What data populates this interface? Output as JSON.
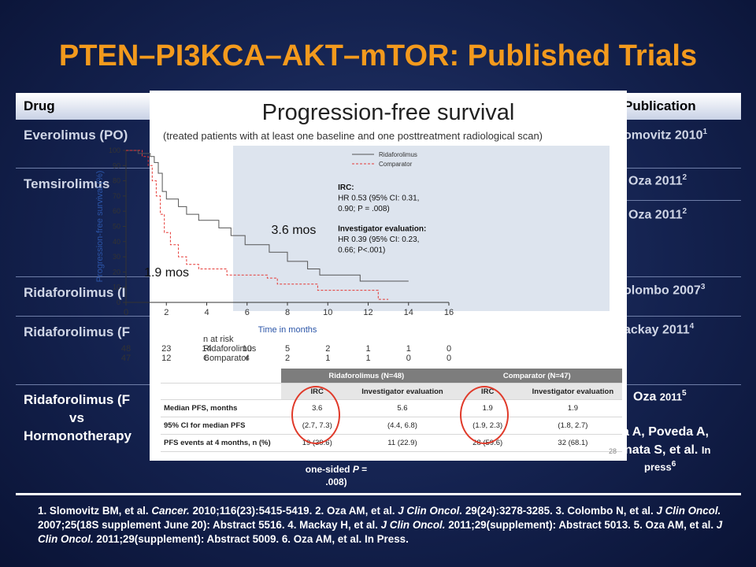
{
  "title": "PTEN–PI3KCA–AKT–mTOR: Published Trials",
  "table": {
    "header": {
      "drug": "Drug",
      "publication": "Publication"
    },
    "rows": [
      {
        "drug": "Everolimus (PO)",
        "pub": "omovitz 2010",
        "sup": "1"
      },
      {
        "drug": "Temsirolimus",
        "pub": "Oza 2011",
        "sup": "2"
      },
      {
        "drug": "",
        "pub": "Oza 2011",
        "sup": "2"
      },
      {
        "drug": "Ridaforolimus (I",
        "pub": "olombo 2007",
        "sup": "3"
      },
      {
        "drug": "Ridaforolimus (F",
        "pub": "ackay 2011",
        "sup": "4"
      }
    ],
    "last_row": {
      "line1": "Ridaforolimus (F",
      "line2": "vs",
      "line3": "Hormonotherapy",
      "pub": "Oza",
      "pub_year": "2011",
      "pub_sup": "5",
      "pub2_line1": "a A, Poveda A,",
      "pub2_line2a": "nata S, et al.",
      "pub2_line2b": "In",
      "pub2_line3": "press",
      "pub2_sup": "6"
    },
    "stat_note": {
      "line1": "one-sided",
      "p_label": "P",
      "line2": "=",
      "line3": ".008)"
    }
  },
  "footnote": {
    "p1": "1. Slomovitz BM, et al. ",
    "j1": "Cancer.",
    "p2": " 2010;116(23):5415-5419. 2. Oza AM, et al.  ",
    "j2": "J Clin Oncol.",
    "p3": " 29(24):3278-3285. 3. Colombo N, et al.  ",
    "j3": "J Clin Oncol.",
    "p4": " 2007;25(18S supplement June 20): Abstract 5516. 4. Mackay H, et al. ",
    "j4": "J Clin Oncol.",
    "p5": " 2011;29(supplement): Abstract 5013. 5. Oza AM, et al. ",
    "j5": "J Clin Oncol.",
    "p6": " 2011;29(supplement): Abstract 5009. 6. Oza AM, et al. In Press."
  },
  "panel": {
    "title": "Progression-free survival",
    "subtitle": "(treated patients with at least one baseline and one posttreatment radiological scan)",
    "irc_title": "IRC:",
    "irc_line1": "HR 0.53 (95% CI: 0.31,",
    "irc_line2": "0.90; P = .008)",
    "inv_title": "Investigator evaluation:",
    "inv_line1": "HR 0.39 (95% CI: 0.23,",
    "inv_line2": "0.66; P<.001)",
    "median_ridaforolimus": "3.6 mos",
    "median_comparator": "1.9 mos",
    "at_risk_label": "n at risk",
    "at_risk_rows": [
      {
        "name": "Ridaforolimus",
        "values": [
          "48",
          "23",
          "14",
          "10",
          "5",
          "2",
          "1",
          "1",
          "0"
        ]
      },
      {
        "name": "Comparator",
        "values": [
          "47",
          "12",
          "6",
          "4",
          "2",
          "1",
          "1",
          "0",
          "0"
        ]
      }
    ],
    "page_number": "28"
  },
  "chart_data": {
    "type": "line",
    "xlabel": "Time in months",
    "ylabel": "Progression-free survival (%)",
    "xlim": [
      0,
      16
    ],
    "ylim": [
      0,
      100
    ],
    "xticks": [
      0,
      2,
      4,
      6,
      8,
      10,
      12,
      14,
      16
    ],
    "yticks": [
      0,
      10,
      20,
      30,
      40,
      50,
      60,
      70,
      80,
      90,
      100
    ],
    "legend_position": "top-right",
    "series": [
      {
        "name": "Ridaforolimus",
        "color": "#555555",
        "points": [
          [
            0,
            100
          ],
          [
            0.6,
            100
          ],
          [
            0.6,
            98
          ],
          [
            1.2,
            98
          ],
          [
            1.2,
            96
          ],
          [
            1.4,
            96
          ],
          [
            1.4,
            92
          ],
          [
            1.6,
            92
          ],
          [
            1.6,
            85
          ],
          [
            1.8,
            85
          ],
          [
            1.8,
            73
          ],
          [
            2.0,
            73
          ],
          [
            2.0,
            68
          ],
          [
            2.6,
            68
          ],
          [
            2.6,
            63
          ],
          [
            3.0,
            63
          ],
          [
            3.0,
            58
          ],
          [
            3.6,
            58
          ],
          [
            3.6,
            54
          ],
          [
            4.6,
            54
          ],
          [
            4.6,
            49
          ],
          [
            5.2,
            49
          ],
          [
            5.2,
            44
          ],
          [
            5.9,
            44
          ],
          [
            5.9,
            38
          ],
          [
            7.1,
            38
          ],
          [
            7.1,
            33
          ],
          [
            8.0,
            33
          ],
          [
            8.0,
            27
          ],
          [
            9.0,
            27
          ],
          [
            9.0,
            22
          ],
          [
            9.6,
            22
          ],
          [
            9.6,
            18
          ],
          [
            11.6,
            18
          ],
          [
            11.6,
            14
          ],
          [
            14.0,
            14
          ]
        ]
      },
      {
        "name": "Comparator",
        "color": "#e53935",
        "points": [
          [
            0,
            100
          ],
          [
            0.8,
            100
          ],
          [
            0.8,
            96
          ],
          [
            1.1,
            96
          ],
          [
            1.1,
            90
          ],
          [
            1.3,
            90
          ],
          [
            1.3,
            80
          ],
          [
            1.5,
            80
          ],
          [
            1.5,
            70
          ],
          [
            1.7,
            70
          ],
          [
            1.7,
            58
          ],
          [
            1.9,
            58
          ],
          [
            1.9,
            46
          ],
          [
            2.2,
            46
          ],
          [
            2.2,
            38
          ],
          [
            2.6,
            38
          ],
          [
            2.6,
            30
          ],
          [
            3.0,
            30
          ],
          [
            3.0,
            25
          ],
          [
            3.6,
            25
          ],
          [
            3.6,
            22
          ],
          [
            5.0,
            22
          ],
          [
            5.0,
            18
          ],
          [
            7.0,
            18
          ],
          [
            7.0,
            16
          ],
          [
            7.5,
            16
          ],
          [
            7.5,
            12
          ],
          [
            9.5,
            12
          ],
          [
            9.5,
            8
          ],
          [
            12.5,
            8
          ],
          [
            12.5,
            2
          ],
          [
            13.0,
            2
          ]
        ]
      }
    ]
  },
  "results_table": {
    "group_ridaforolimus": "Ridaforolimus (N=48)",
    "group_comparator": "Comparator (N=47)",
    "col_irc": "IRC",
    "col_inv": "Investigator evaluation",
    "rows": [
      {
        "label": "Median PFS, months",
        "values": [
          "3.6",
          "5.6",
          "1.9",
          "1.9"
        ]
      },
      {
        "label": "95% CI for median PFS",
        "values": [
          "(2.7, 7.3)",
          "(4.4, 6.8)",
          "(1.9, 2.3)",
          "(1.8, 2.7)"
        ]
      },
      {
        "label": "PFS events at 4 months, n (%)",
        "values": [
          "19 (39.6)",
          "11 (22.9)",
          "28 (59.6)",
          "32 (68.1)"
        ]
      }
    ]
  }
}
